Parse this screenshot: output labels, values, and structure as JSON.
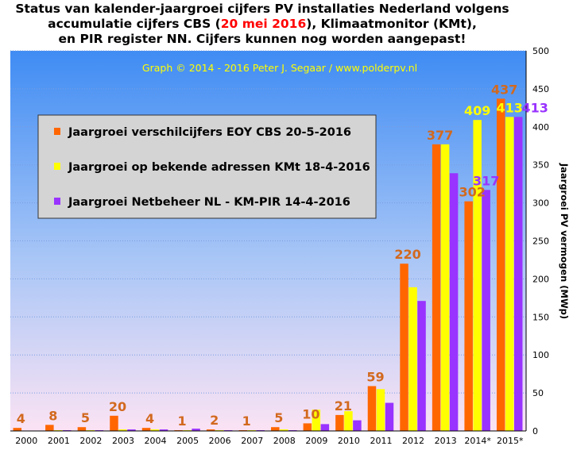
{
  "title": {
    "line1": "Status van kalender-jaargroei cijfers PV installaties  Nederland volgens",
    "line2_pre": "accumulatie  cijfers CBS (",
    "line2_highlight": "20 mei 2016",
    "line2_post": "), Klimaatmonitor (KMt),",
    "line3": "en PIR register NN. Cijfers kunnen nog worden aangepast!"
  },
  "credit": "Graph  ©  2014  -  2016  Peter  J.  Segaar  /  www.polderpv.nl",
  "colors": {
    "background_top": "#3f8cf4",
    "background_bottom": "#fbe3f4",
    "cbs": "#ff6600",
    "kmt": "#ffff00",
    "pir": "#9933ff",
    "cbs_label": "#d2691e",
    "credit": "#ffff00"
  },
  "chart_data": {
    "type": "bar",
    "ylabel": "Jaargroei PV vermogen (MWp)",
    "ylim": [
      0,
      500
    ],
    "yticks": [
      0,
      50,
      100,
      150,
      200,
      250,
      300,
      350,
      400,
      450,
      500
    ],
    "grid": true,
    "legend_position": "top-left",
    "categories": [
      "2000",
      "2001",
      "2002",
      "2003",
      "2004",
      "2005",
      "2006",
      "2007",
      "2008",
      "2009",
      "2010",
      "2011",
      "2012",
      "2013",
      "2014*",
      "2015*"
    ],
    "series": [
      {
        "name": "Jaargroei verschilcijfers EOY CBS 20-5-2016",
        "values": [
          4,
          8,
          5,
          20,
          4,
          1,
          2,
          1,
          5,
          10,
          21,
          59,
          220,
          377,
          302,
          437
        ]
      },
      {
        "name": "Jaargroei op bekende adressen KMt 18-4-2016",
        "values": [
          0.5,
          1,
          1,
          2,
          2,
          1,
          1,
          1,
          2,
          28,
          26,
          55,
          189,
          377,
          409,
          413
        ]
      },
      {
        "name": "Jaargroei Netbeheer NL - KM-PIR 14-4-2016",
        "values": [
          0.5,
          1,
          1,
          2,
          2,
          3,
          1,
          1,
          1,
          9,
          14,
          37,
          171,
          339,
          317,
          413
        ]
      }
    ],
    "data_labels_cbs": [
      "4",
      "8",
      "5",
      "20",
      "4",
      "1",
      "2",
      "1",
      "5",
      "10",
      "21",
      "59",
      "220",
      "377",
      "302",
      "437"
    ],
    "extra_labels": [
      {
        "series": 1,
        "index": 14,
        "text": "409"
      },
      {
        "series": 1,
        "index": 15,
        "text": "413"
      },
      {
        "series": 2,
        "index": 14,
        "text": "317"
      },
      {
        "series": 2,
        "index": 15,
        "text": "413"
      }
    ]
  }
}
